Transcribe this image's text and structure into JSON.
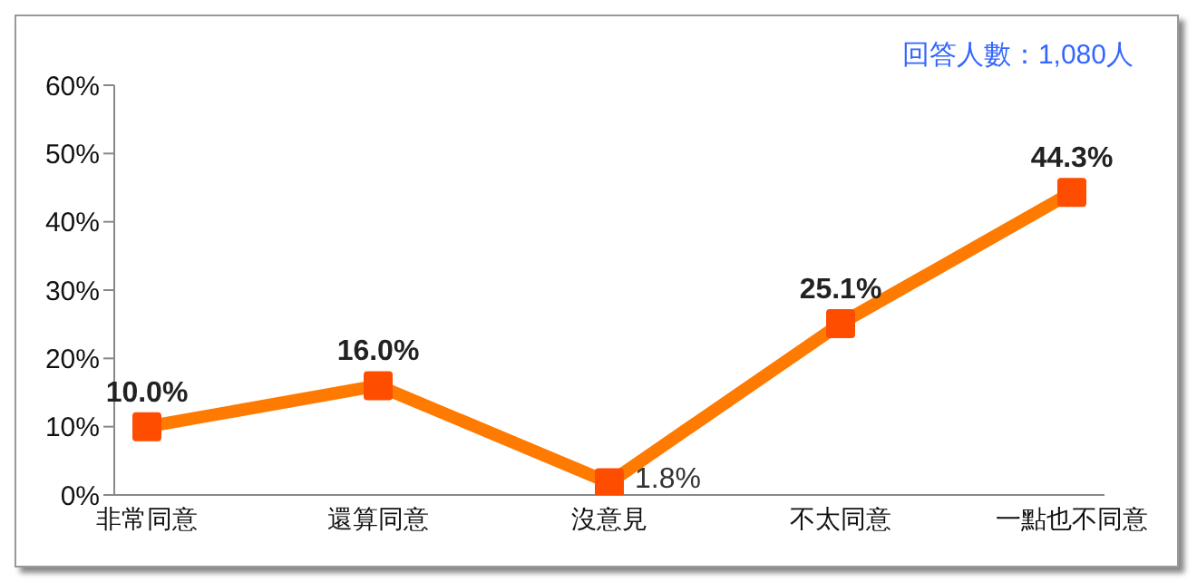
{
  "chart_data": {
    "type": "line",
    "categories": [
      "非常同意",
      "還算同意",
      "沒意見",
      "不太同意",
      "一點也不同意"
    ],
    "series": [
      {
        "color": "#ff7a00",
        "values": [
          10.0,
          16.0,
          1.8,
          25.1,
          44.3
        ],
        "value_labels": [
          "10.0%",
          "16.0%",
          "1.8%",
          "25.1%",
          "44.3%"
        ]
      }
    ],
    "ylim": [
      0,
      60
    ],
    "yticks": [
      {
        "value": 0,
        "label": "0%"
      },
      {
        "value": 10,
        "label": "10%"
      },
      {
        "value": 20,
        "label": "20%"
      },
      {
        "value": 30,
        "label": "30%"
      },
      {
        "value": 40,
        "label": "40%"
      },
      {
        "value": 50,
        "label": "50%"
      },
      {
        "value": 60,
        "label": "60%"
      }
    ],
    "grid": false,
    "marker": "square",
    "line_style": "solid",
    "annotations": [
      "回答人數：1,080人"
    ]
  }
}
